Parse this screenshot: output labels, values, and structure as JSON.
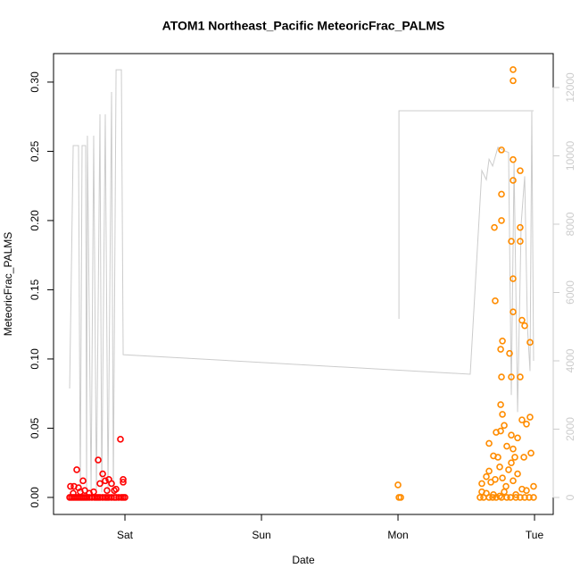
{
  "chart_data": {
    "type": "scatter",
    "title": "ATOM1 Northeast_Pacific MeteoricFrac_PALMS",
    "xlabel": "Date",
    "ylabel": "MeteoricFrac_PALMS",
    "xlim": [
      -0.523,
      3.137
    ],
    "xticks": [
      {
        "value": 0,
        "label": "Sat"
      },
      {
        "value": 1,
        "label": "Sun"
      },
      {
        "value": 2,
        "label": "Mon"
      },
      {
        "value": 3,
        "label": "Tue"
      }
    ],
    "ylim": [
      -0.0123,
      0.3206
    ],
    "yticks": [
      {
        "value": 0,
        "label": "0.00"
      },
      {
        "value": 0.05,
        "label": "0.05"
      },
      {
        "value": 0.1,
        "label": "0.10"
      },
      {
        "value": 0.15,
        "label": "0.15"
      },
      {
        "value": 0.2,
        "label": "0.20"
      },
      {
        "value": 0.25,
        "label": "0.25"
      },
      {
        "value": 0.3,
        "label": "0.30"
      }
    ],
    "y2lim": [
      -497,
      12993
    ],
    "y2ticks": [
      0,
      2000,
      4000,
      6000,
      8000,
      10000,
      12000
    ],
    "y2color": "#cccccc",
    "series": [
      {
        "color": "#cccccc",
        "axis": "y2",
        "kind": "line",
        "x": [
          -0.405,
          -0.379,
          -0.34,
          -0.327,
          -0.314,
          -0.288,
          -0.281,
          -0.275,
          -0.248,
          -0.229,
          -0.209,
          -0.183,
          -0.17,
          -0.144,
          -0.124,
          -0.098,
          -0.085,
          -0.065,
          -0.026,
          -0.013,
          2.529,
          2.614,
          2.647,
          2.667,
          2.693,
          2.732,
          2.778,
          2.81,
          2.83,
          2.85,
          2.876,
          2.902,
          2.928,
          2.948,
          2.967,
          2.98,
          2.993,
          null,
          2.007,
          2.007,
          2.993
        ],
        "values": [
          3190,
          10300,
          10300,
          150,
          10300,
          10300,
          150,
          10590,
          150,
          10590,
          150,
          11216,
          150,
          11216,
          150,
          11870,
          150,
          12520,
          12520,
          4180,
          3608,
          9570,
          9300,
          9900,
          9700,
          10250,
          10150,
          10100,
          3000,
          9800,
          2500,
          8000,
          9400,
          5000,
          3700,
          11300,
          4000,
          null,
          5230,
          11320,
          11320
        ]
      },
      {
        "color": "#ff0000",
        "kind": "points",
        "x": [
          -0.405,
          -0.392,
          -0.379,
          -0.366,
          -0.353,
          -0.34,
          -0.327,
          -0.314,
          -0.301,
          -0.288,
          -0.275,
          -0.261,
          -0.242,
          -0.222,
          -0.209,
          -0.196,
          -0.183,
          -0.163,
          -0.144,
          -0.131,
          -0.118,
          -0.098,
          -0.078,
          -0.065,
          -0.046,
          -0.026,
          -0.013,
          0,
          -0.353,
          -0.399,
          -0.373,
          -0.34,
          -0.307,
          -0.294,
          -0.196,
          -0.163,
          -0.144,
          -0.118,
          -0.098,
          -0.078,
          -0.183,
          -0.131,
          -0.013,
          -0.013,
          -0.033,
          -0.065,
          -0.261,
          -0.229,
          -0.327,
          -0.379
        ],
        "values": [
          0,
          0,
          0,
          0,
          0,
          0,
          0,
          0,
          0,
          0,
          0,
          0,
          0,
          0,
          0,
          0,
          0,
          0,
          0,
          0,
          0,
          0,
          0,
          0,
          0,
          0,
          0,
          0,
          0.02,
          0.008,
          0.008,
          0.007,
          0.012,
          0.005,
          0.027,
          0.017,
          0.012,
          0.013,
          0.01,
          0.005,
          0.01,
          0.005,
          0.013,
          0.011,
          0.042,
          0.006,
          0.003,
          0.004,
          0.004,
          0.003
        ]
      },
      {
        "color": "#ff8c00",
        "kind": "points",
        "x": [
          2.843,
          2.843,
          2.758,
          2.843,
          2.843,
          2.758,
          2.895,
          2.758,
          2.706,
          2.895,
          2.83,
          2.895,
          2.843,
          2.712,
          2.843,
          2.908,
          2.928,
          2.967,
          2.765,
          2.752,
          2.817,
          2.83,
          2.758,
          2.895,
          2.752,
          2.765,
          2.967,
          2.908,
          2.941,
          2.778,
          2.719,
          2.752,
          2.83,
          2.876,
          2.667,
          2.797,
          2.843,
          2.974,
          2.699,
          2.732,
          2.856,
          2.922,
          2.83,
          2.745,
          2.667,
          2.81,
          2.876,
          2.647,
          2.712,
          2.765,
          2.843,
          2.614,
          2.68,
          2.993,
          2.791,
          2.908,
          2.941,
          2.614,
          2.647,
          2.699,
          2.745,
          2.778,
          2.863,
          2.895,
          2.601,
          2.627,
          2.667,
          2.693,
          2.719,
          2.758,
          2.797,
          2.824,
          2.863,
          2.928,
          2.961,
          2.993,
          2.0,
          2.007,
          2.02
        ],
        "values": [
          0.309,
          0.301,
          0.251,
          0.244,
          0.229,
          0.219,
          0.236,
          0.2,
          0.195,
          0.195,
          0.185,
          0.185,
          0.158,
          0.142,
          0.134,
          0.128,
          0.124,
          0.112,
          0.113,
          0.107,
          0.104,
          0.087,
          0.087,
          0.087,
          0.067,
          0.06,
          0.058,
          0.056,
          0.053,
          0.052,
          0.047,
          0.048,
          0.045,
          0.043,
          0.039,
          0.037,
          0.035,
          0.032,
          0.03,
          0.029,
          0.029,
          0.029,
          0.025,
          0.022,
          0.019,
          0.02,
          0.017,
          0.015,
          0.013,
          0.014,
          0.012,
          0.01,
          0.011,
          0.008,
          0.008,
          0.006,
          0.005,
          0.004,
          0.003,
          0.002,
          0.001,
          0.004,
          0.002,
          0,
          0,
          0,
          0,
          0,
          0,
          0,
          0,
          0,
          0,
          0,
          0,
          0,
          0.009,
          0,
          0
        ]
      }
    ]
  }
}
